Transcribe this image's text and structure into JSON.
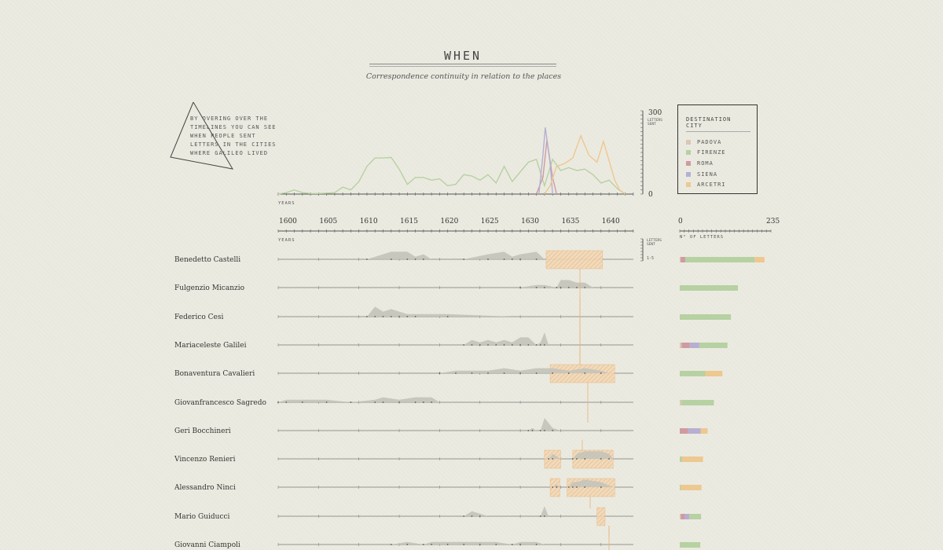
{
  "page": {
    "title": "WHEN",
    "subtitle": "Correspondence continuity in relation to the places",
    "note": "BY OVERING OVER THE TIMELINES YOU CAN SEE WHEN PEOPLE SENT LETTERS IN THE CITIES WHERE GALILEO LIVED"
  },
  "colors": {
    "padova": "#d8c8b5",
    "firenze": "#b6d1a2",
    "roma": "#cf9aa4",
    "siena": "#b6afd2",
    "arcetri": "#edc890",
    "axis": "#444444",
    "person_area": "#c4c3ba"
  },
  "legend": {
    "title": "DESTINATION CITY",
    "items": [
      {
        "label": "PADOVA",
        "key": "padova"
      },
      {
        "label": "FIRENZE",
        "key": "firenze"
      },
      {
        "label": "ROMA",
        "key": "roma"
      },
      {
        "label": "SIENA",
        "key": "siena"
      },
      {
        "label": "ARCETRI",
        "key": "arcetri"
      }
    ]
  },
  "chart_data": {
    "type": "line",
    "title": "WHEN",
    "subtitle": "Correspondence continuity in relation to the places",
    "xlabel": "YEARS",
    "ylabel": "LETTERS SENT",
    "x_ticks": [
      1600,
      1605,
      1610,
      1615,
      1620,
      1625,
      1630,
      1635,
      1640
    ],
    "xlim": [
      1600,
      1644
    ],
    "top_ylim": [
      0,
      300
    ],
    "top_yticks": [
      300,
      0
    ],
    "series": [
      {
        "name": "FIRENZE",
        "key": "firenze",
        "points": [
          [
            1600,
            0
          ],
          [
            1601,
            5
          ],
          [
            1602,
            15
          ],
          [
            1603,
            5
          ],
          [
            1604,
            2
          ],
          [
            1605,
            2
          ],
          [
            1606,
            3
          ],
          [
            1607,
            5
          ],
          [
            1608,
            25
          ],
          [
            1609,
            15
          ],
          [
            1610,
            45
          ],
          [
            1611,
            100
          ],
          [
            1612,
            130
          ],
          [
            1613,
            130
          ],
          [
            1614,
            132
          ],
          [
            1615,
            90
          ],
          [
            1616,
            35
          ],
          [
            1617,
            60
          ],
          [
            1618,
            60
          ],
          [
            1619,
            50
          ],
          [
            1620,
            55
          ],
          [
            1621,
            30
          ],
          [
            1622,
            35
          ],
          [
            1623,
            70
          ],
          [
            1624,
            65
          ],
          [
            1625,
            50
          ],
          [
            1626,
            70
          ],
          [
            1627,
            40
          ],
          [
            1628,
            100
          ],
          [
            1629,
            45
          ],
          [
            1630,
            80
          ],
          [
            1631,
            115
          ],
          [
            1632,
            125
          ],
          [
            1633,
            30
          ],
          [
            1634,
            125
          ],
          [
            1635,
            85
          ],
          [
            1636,
            95
          ],
          [
            1637,
            85
          ],
          [
            1638,
            90
          ],
          [
            1639,
            70
          ],
          [
            1640,
            40
          ],
          [
            1641,
            50
          ],
          [
            1642,
            20
          ],
          [
            1643,
            0
          ]
        ]
      },
      {
        "name": "ROMA",
        "key": "roma",
        "points": [
          [
            1632,
            0
          ],
          [
            1632.8,
            60
          ],
          [
            1633.3,
            195
          ],
          [
            1634,
            60
          ],
          [
            1634.5,
            0
          ]
        ]
      },
      {
        "name": "SIENA",
        "key": "siena",
        "points": [
          [
            1632.3,
            0
          ],
          [
            1632.8,
            140
          ],
          [
            1633.1,
            240
          ],
          [
            1633.7,
            110
          ],
          [
            1634,
            0
          ]
        ]
      },
      {
        "name": "ARCETRI",
        "key": "arcetri",
        "points": [
          [
            1633,
            0
          ],
          [
            1633.7,
            30
          ],
          [
            1634.5,
            100
          ],
          [
            1635.5,
            110
          ],
          [
            1636.5,
            130
          ],
          [
            1637.5,
            210
          ],
          [
            1638.5,
            140
          ],
          [
            1639.5,
            115
          ],
          [
            1640.3,
            190
          ],
          [
            1641,
            120
          ],
          [
            1641.7,
            50
          ],
          [
            1642.3,
            15
          ],
          [
            1643,
            0
          ]
        ]
      }
    ],
    "people": [
      {
        "name": "Benedetto Castelli",
        "segments": [
          [
            "padova",
            0.01
          ],
          [
            "roma",
            0.05
          ],
          [
            "firenze",
            0.76
          ],
          [
            "arcetri",
            0.11
          ]
        ],
        "total": 235,
        "area": [
          [
            1611,
            0
          ],
          [
            1614,
            3
          ],
          [
            1616,
            3
          ],
          [
            1617,
            1
          ],
          [
            1618,
            2
          ],
          [
            1619,
            0
          ],
          [
            1623,
            0
          ],
          [
            1626,
            2
          ],
          [
            1628,
            3
          ],
          [
            1629,
            1
          ],
          [
            1630,
            2
          ],
          [
            1632,
            3
          ],
          [
            1633,
            0
          ]
        ],
        "highlights": [
          [
            1633.2,
            1640.2
          ]
        ]
      },
      {
        "name": "Fulgenzio Micanzio",
        "segments": [
          [
            "firenze",
            1.0
          ]
        ],
        "total": 150,
        "area": [
          [
            1630,
            0
          ],
          [
            1632,
            1
          ],
          [
            1633,
            1
          ],
          [
            1634.5,
            0
          ],
          [
            1635,
            3
          ],
          [
            1636,
            3
          ],
          [
            1637,
            2
          ],
          [
            1638,
            2
          ],
          [
            1639,
            0
          ]
        ],
        "highlights": []
      },
      {
        "name": "Federico Cesi",
        "segments": [
          [
            "firenze",
            1.0
          ]
        ],
        "total": 132,
        "area": [
          [
            1611,
            0
          ],
          [
            1612,
            4
          ],
          [
            1613,
            2
          ],
          [
            1614,
            3
          ],
          [
            1615,
            2
          ],
          [
            1616,
            1
          ],
          [
            1617,
            1
          ],
          [
            1621,
            1
          ],
          [
            1629,
            0
          ]
        ],
        "highlights": []
      },
      {
        "name": "Mariaceleste Galilei",
        "segments": [
          [
            "padova",
            0.04
          ],
          [
            "roma",
            0.17
          ],
          [
            "siena",
            0.2
          ],
          [
            "firenze",
            0.59
          ]
        ],
        "total": 123,
        "area": [
          [
            1623,
            0
          ],
          [
            1624,
            2
          ],
          [
            1625,
            1
          ],
          [
            1626,
            2
          ],
          [
            1627,
            1
          ],
          [
            1628,
            2
          ],
          [
            1629,
            1
          ],
          [
            1630,
            3
          ],
          [
            1631,
            3
          ],
          [
            1632,
            0
          ],
          [
            1632.5,
            1
          ],
          [
            1633,
            5
          ],
          [
            1633.5,
            0
          ]
        ],
        "highlights": []
      },
      {
        "name": "Bonaventura Cavalieri",
        "segments": [
          [
            "firenze",
            0.6
          ],
          [
            "arcetri",
            0.4
          ]
        ],
        "total": 110,
        "area": [
          [
            1620,
            0
          ],
          [
            1622,
            1
          ],
          [
            1624,
            1
          ],
          [
            1626,
            1
          ],
          [
            1628,
            2
          ],
          [
            1630,
            1
          ],
          [
            1632,
            2
          ],
          [
            1634,
            2
          ],
          [
            1636,
            1
          ],
          [
            1638,
            2
          ],
          [
            1640,
            1
          ],
          [
            1641,
            0
          ]
        ],
        "highlights": [
          [
            1633.7,
            1641.7
          ]
        ]
      },
      {
        "name": "Giovanfrancesco Sagredo",
        "segments": [
          [
            "padova",
            0.05
          ],
          [
            "firenze",
            0.95
          ]
        ],
        "total": 88,
        "area": [
          [
            1600,
            0
          ],
          [
            1601,
            1
          ],
          [
            1603,
            1
          ],
          [
            1606,
            1
          ],
          [
            1609,
            0
          ],
          [
            1612,
            1
          ],
          [
            1613,
            2
          ],
          [
            1615,
            1
          ],
          [
            1617,
            2
          ],
          [
            1618,
            2
          ],
          [
            1619,
            2
          ],
          [
            1620,
            0
          ]
        ],
        "highlights": []
      },
      {
        "name": "Geri Bocchineri",
        "segments": [
          [
            "roma",
            0.3
          ],
          [
            "siena",
            0.45
          ],
          [
            "arcetri",
            0.25
          ]
        ],
        "total": 72,
        "area": [
          [
            1631,
            0
          ],
          [
            1631.5,
            1
          ],
          [
            1632,
            0
          ],
          [
            1632.5,
            0
          ],
          [
            1633,
            5
          ],
          [
            1634,
            1
          ],
          [
            1635,
            0
          ]
        ],
        "highlights": []
      },
      {
        "name": "Vincenzo Renieri",
        "segments": [
          [
            "firenze",
            0.1
          ],
          [
            "arcetri",
            0.9
          ]
        ],
        "total": 60,
        "area": [
          [
            1633.5,
            0
          ],
          [
            1634,
            2
          ],
          [
            1635,
            0
          ],
          [
            1636.5,
            0
          ],
          [
            1637,
            2
          ],
          [
            1638,
            3
          ],
          [
            1640,
            3
          ],
          [
            1641,
            2
          ],
          [
            1641.5,
            0
          ]
        ],
        "highlights": [
          [
            1633,
            1635
          ],
          [
            1636.5,
            1641.5
          ]
        ]
      },
      {
        "name": "Alessandro Ninci",
        "segments": [
          [
            "firenze",
            0.05
          ],
          [
            "arcetri",
            0.95
          ]
        ],
        "total": 56,
        "area": [
          [
            1634,
            0
          ],
          [
            1634.5,
            1
          ],
          [
            1635,
            0
          ],
          [
            1636,
            0
          ],
          [
            1636.5,
            2
          ],
          [
            1637,
            2
          ],
          [
            1638,
            3
          ],
          [
            1640,
            2
          ],
          [
            1641.5,
            0
          ]
        ],
        "highlights": [
          [
            1633.7,
            1634.9
          ],
          [
            1635.8,
            1641.7
          ]
        ]
      },
      {
        "name": "Mario Guiducci",
        "segments": [
          [
            "padova",
            0.05
          ],
          [
            "roma",
            0.2
          ],
          [
            "siena",
            0.2
          ],
          [
            "firenze",
            0.55
          ]
        ],
        "total": 55,
        "area": [
          [
            1623,
            0
          ],
          [
            1624,
            2
          ],
          [
            1625,
            1
          ],
          [
            1626,
            0
          ],
          [
            1632.5,
            0
          ],
          [
            1633,
            4
          ],
          [
            1633.5,
            0
          ]
        ],
        "highlights": [
          [
            1639.5,
            1640.5
          ]
        ]
      },
      {
        "name": "Giovanni Ciampoli",
        "segments": [
          [
            "firenze",
            1.0
          ]
        ],
        "total": 53,
        "area": [
          [
            1614,
            0
          ],
          [
            1616,
            1
          ],
          [
            1618,
            0
          ],
          [
            1619,
            1
          ],
          [
            1621,
            1
          ],
          [
            1623,
            1
          ],
          [
            1625,
            1
          ],
          [
            1627,
            1
          ],
          [
            1629,
            0
          ],
          [
            1630,
            1
          ],
          [
            1632,
            1
          ],
          [
            1633,
            0
          ]
        ],
        "highlights": []
      }
    ],
    "bar_axis": {
      "min": 0,
      "max": 235,
      "label": "N° OF LETTERS"
    },
    "timeline_scale_label": "1-5",
    "timeline_ylabel": "LETTERS SENT"
  }
}
